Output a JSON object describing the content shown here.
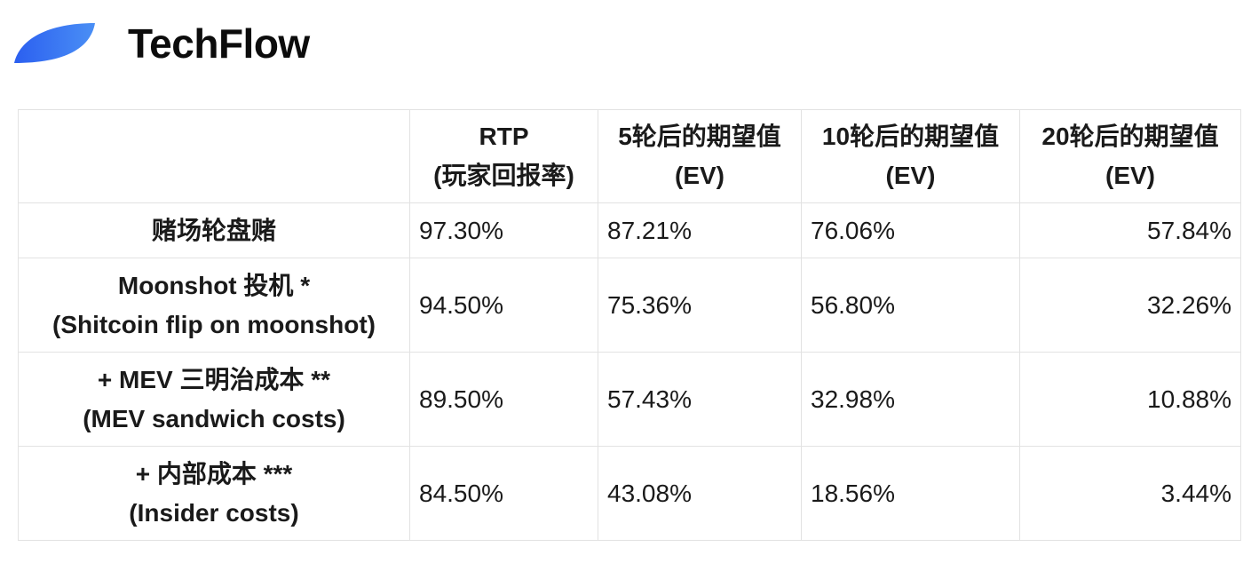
{
  "brand": {
    "name": "TechFlow",
    "color": "#2b5ff0"
  },
  "table": {
    "headers": [
      {
        "line1": "",
        "line2": ""
      },
      {
        "line1": "RTP",
        "line2": "(玩家回报率)"
      },
      {
        "line1": "5轮后的期望值",
        "line2": "(EV)"
      },
      {
        "line1": "10轮后的期望值",
        "line2": "(EV)"
      },
      {
        "line1": "20轮后的期望值",
        "line2": "(EV)"
      }
    ],
    "rows": [
      {
        "line1": "赌场轮盘赌",
        "line2": "",
        "values": [
          "97.30%",
          "87.21%",
          "76.06%",
          "57.84%"
        ]
      },
      {
        "line1": "Moonshot 投机 *",
        "line2": "(Shitcoin flip on moonshot)",
        "values": [
          "94.50%",
          "75.36%",
          "56.80%",
          "32.26%"
        ]
      },
      {
        "line1": "+ MEV 三明治成本 **",
        "line2": "(MEV sandwich costs)",
        "values": [
          "89.50%",
          "57.43%",
          "32.98%",
          "10.88%"
        ]
      },
      {
        "line1": "+ 内部成本 ***",
        "line2": "(Insider costs)",
        "values": [
          "84.50%",
          "43.08%",
          "18.56%",
          "3.44%"
        ]
      }
    ]
  }
}
